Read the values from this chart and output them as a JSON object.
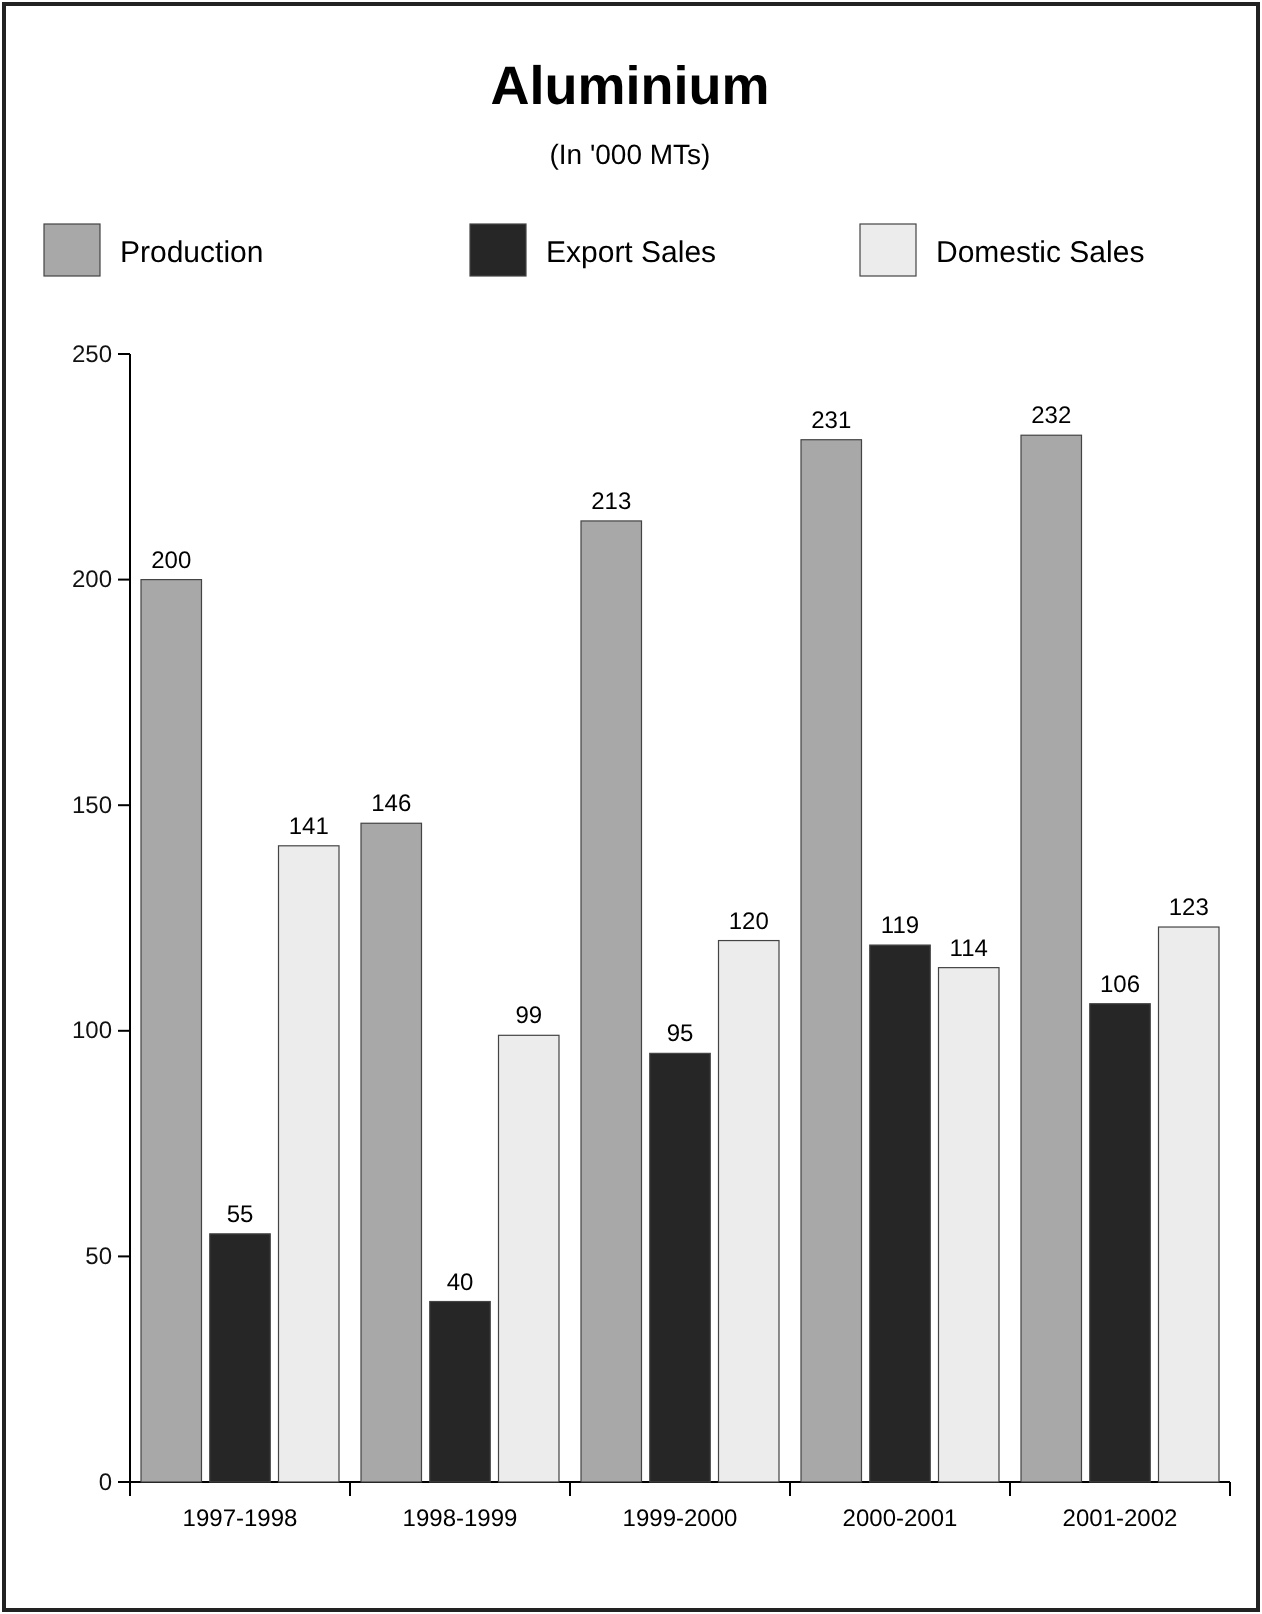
{
  "chart_data": {
    "type": "bar",
    "title": "Aluminium",
    "subtitle": "(In '000 MTs)",
    "categories": [
      "1997-1998",
      "1998-1999",
      "1999-2000",
      "2000-2001",
      "2001-2002"
    ],
    "series": [
      {
        "name": "Production",
        "color": "#a8a8a8",
        "values": [
          200,
          146,
          213,
          231,
          232
        ]
      },
      {
        "name": "Export Sales",
        "color": "#262626",
        "values": [
          55,
          40,
          95,
          119,
          106
        ]
      },
      {
        "name": "Domestic Sales",
        "color": "#ececec",
        "values": [
          141,
          99,
          120,
          114,
          123
        ]
      }
    ],
    "ylim": [
      0,
      250
    ],
    "yticks": [
      0,
      50,
      100,
      150,
      200,
      250
    ],
    "grid": false,
    "legend": "top",
    "data_labels": true
  }
}
